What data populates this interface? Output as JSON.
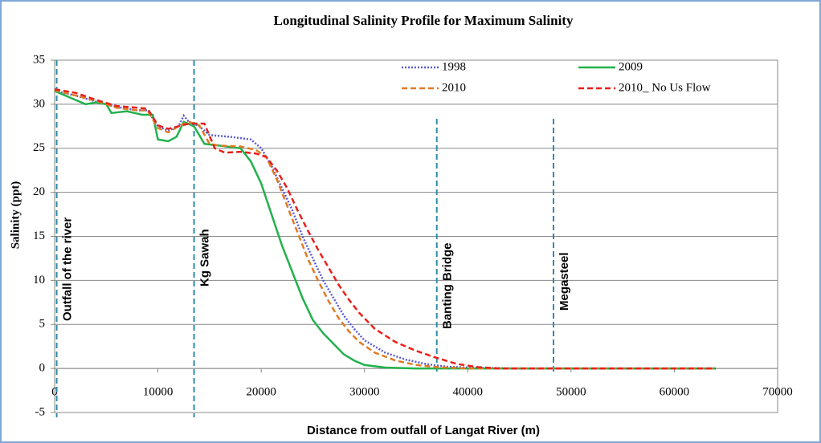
{
  "chart_data": {
    "type": "line",
    "title": "Longitudinal Salinity Profile for Maximum Salinity",
    "x_label": "Distance from outfall of Langat River (m)",
    "y_label": "Salinity (ppt)",
    "xlim": [
      0,
      70000
    ],
    "xticks": [
      0,
      10000,
      20000,
      30000,
      40000,
      50000,
      60000,
      70000
    ],
    "ylim": [
      -5,
      35
    ],
    "yticks": [
      -5,
      0,
      5,
      10,
      15,
      20,
      25,
      30,
      35
    ],
    "grid": true,
    "legend": "top-right",
    "markers": [
      {
        "label": "Outfall of the river",
        "x": 200
      },
      {
        "label": "Kg Sawah",
        "x": 13500
      },
      {
        "label": "Banting Bridge",
        "x": 37000
      },
      {
        "label": "Megasteel",
        "x": 48300
      }
    ],
    "series": [
      {
        "name": "1998",
        "color": "#5b5bd6",
        "dash": "dotted",
        "x": [
          0,
          2000,
          4000,
          5000,
          6000,
          8000,
          9000,
          10000,
          11000,
          12000,
          12500,
          13000,
          14000,
          15000,
          17000,
          19000,
          20000,
          21000,
          22000,
          23000,
          24000,
          25000,
          26000,
          27000,
          28000,
          29000,
          30000,
          32000,
          34000,
          36000,
          38000,
          40000,
          45000,
          64000
        ],
        "values": [
          31.5,
          31,
          30.3,
          30,
          29.7,
          29.3,
          29.3,
          27.5,
          27,
          27.5,
          28.7,
          28,
          27.5,
          26.5,
          26.3,
          26,
          25,
          23,
          20.5,
          18,
          15,
          12.5,
          10,
          8,
          6,
          4.5,
          3.2,
          1.8,
          1,
          0.5,
          0.2,
          0.1,
          0,
          0
        ]
      },
      {
        "name": "2009",
        "color": "#22b14c",
        "dash": "solid",
        "x": [
          0,
          2000,
          3000,
          4000,
          5000,
          5500,
          7000,
          8500,
          9500,
          10000,
          11000,
          11800,
          12500,
          13500,
          14500,
          16000,
          18000,
          19000,
          20000,
          21000,
          22000,
          23000,
          24000,
          25000,
          26000,
          27000,
          28000,
          29000,
          30000,
          32000,
          35000,
          64000
        ],
        "values": [
          31.5,
          30.5,
          30,
          30.2,
          30,
          29,
          29.2,
          28.8,
          28.8,
          26,
          25.8,
          26.3,
          28,
          27.5,
          25.5,
          25.3,
          25,
          23.5,
          21,
          17.5,
          14,
          11,
          8,
          5.5,
          4,
          2.8,
          1.6,
          0.9,
          0.4,
          0.1,
          0,
          0
        ]
      },
      {
        "name": "2010",
        "color": "#e07b25",
        "dash": "dashed",
        "x": [
          0,
          2000,
          4000,
          6000,
          8000,
          9000,
          10000,
          11000,
          12000,
          13000,
          14000,
          15000,
          16000,
          18000,
          19500,
          20500,
          21500,
          22500,
          23500,
          24500,
          25500,
          26500,
          27500,
          28500,
          29500,
          31000,
          33000,
          35000,
          37000,
          40000,
          64000
        ],
        "values": [
          31.6,
          31,
          30.4,
          29.6,
          29.3,
          29.3,
          27.3,
          26.8,
          27.5,
          28,
          27.6,
          25.5,
          25.3,
          25.2,
          24.8,
          24,
          21.5,
          18.5,
          15.5,
          12.5,
          10,
          7.7,
          5.7,
          4.2,
          3,
          1.8,
          0.9,
          0.4,
          0.15,
          0,
          0
        ]
      },
      {
        "name": "2010_ No Us Flow",
        "color": "#e8201c",
        "dash": "dashed",
        "x": [
          0,
          2000,
          4000,
          6000,
          8000,
          9000,
          10000,
          11000,
          12000,
          13000,
          14500,
          15500,
          16500,
          18000,
          19500,
          20500,
          21500,
          22500,
          23500,
          24500,
          25500,
          26500,
          27500,
          28500,
          29500,
          31000,
          33000,
          35000,
          37000,
          39000,
          41000,
          43000,
          64000
        ],
        "values": [
          31.7,
          31.3,
          30.5,
          29.8,
          29.6,
          29.5,
          27.6,
          27.2,
          27.5,
          27.8,
          27.8,
          25,
          24.5,
          24.6,
          24.4,
          24,
          22.5,
          20.5,
          18,
          15.7,
          13.5,
          11.5,
          9.5,
          7.8,
          6.3,
          4.5,
          3,
          2,
          1.2,
          0.5,
          0.15,
          0,
          0
        ]
      }
    ]
  }
}
